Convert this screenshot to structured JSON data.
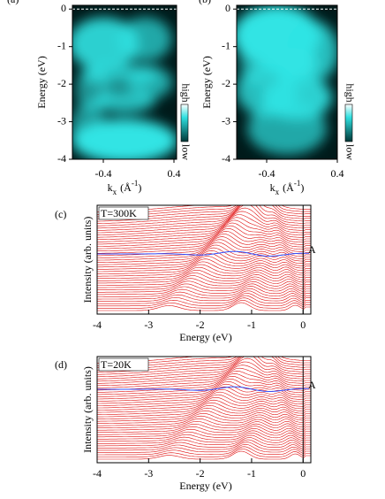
{
  "chart_data": [
    {
      "type": "heatmap",
      "panel_label": "(a)",
      "y_label": "Energy (eV)",
      "x_label": {
        "symbol": "k",
        "subscript": "x",
        "unit_open": "(Å",
        "superscript": "-1",
        "unit_close": ")"
      },
      "xlim": [
        -0.75,
        0.43
      ],
      "xticks": [
        -0.4,
        0.4
      ],
      "ylim": [
        -4,
        0.1
      ],
      "yticks": [
        0,
        -1,
        -2,
        -3,
        -4
      ],
      "colorbar": {
        "high": "high",
        "low": "low"
      }
    },
    {
      "type": "heatmap",
      "panel_label": "(b)",
      "y_label": "Energy (eV)",
      "x_label": {
        "symbol": "k",
        "subscript": "x",
        "unit_open": "(Å",
        "superscript": "-1",
        "unit_close": ")"
      },
      "xlim": [
        -0.74,
        0.4
      ],
      "xticks": [
        -0.4,
        0.4
      ],
      "ylim": [
        -4,
        0.1
      ],
      "yticks": [
        0,
        -1,
        -2,
        -3,
        -4
      ],
      "colorbar": {
        "high": "high",
        "low": "low"
      }
    },
    {
      "type": "line",
      "panel_label": "(c)",
      "annotation": "T=300K",
      "marker": "A",
      "x_label": "Energy (eV)",
      "y_label": "Intensity (arb. units)",
      "xlim": [
        -4,
        0.15
      ],
      "xticks": [
        -4,
        -3,
        -2,
        -1,
        0
      ]
    },
    {
      "type": "line",
      "panel_label": "(d)",
      "annotation": "T=20K",
      "marker": "A",
      "x_label": "Energy (eV)",
      "y_label": "Intensity (arb. units)",
      "xlim": [
        -4,
        0.15
      ],
      "xticks": [
        -4,
        -3,
        -2,
        -1,
        0
      ]
    }
  ]
}
